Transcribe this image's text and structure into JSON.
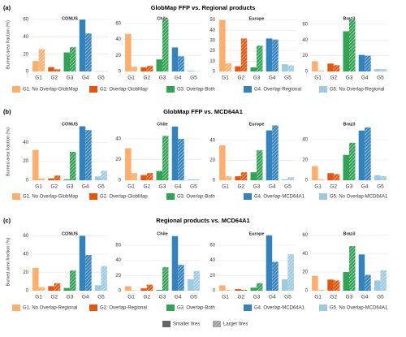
{
  "rows": [
    {
      "label": "(a)",
      "title": "GlobMap FFP vs. Regional products",
      "legend": [
        "G1. No Overlap-GlobMap",
        "G2. Overlap-GlobMap",
        "G3. Overlap-Both",
        "G4. Overlap-Regional",
        "G5. No Overlap-Regional"
      ]
    },
    {
      "label": "(b)",
      "title": "GlobMap FFP vs. MCD64A1",
      "legend": [
        "G1. No Overlap-GlobMap",
        "G2. Overlap-GlobMap",
        "G3. Overlap-Both",
        "G4. Overlap-MCD64A1",
        "G5. No Overlap-MCD64A1"
      ]
    },
    {
      "label": "(c)",
      "title": "Regional products vs. MCD64A1",
      "legend": [
        "G1. No Overlap-Regional",
        "G2. Overlap-Regional",
        "G3. Overlap-Both",
        "G4. Overlap-MCD64A1",
        "G5. No Overlap-MCD64A1"
      ]
    }
  ],
  "chart_data": [
    {
      "type": "bar",
      "title": "CONUS",
      "y_label": "Burned area fraction (%)",
      "categories": [
        "G1",
        "G2",
        "G3",
        "G4",
        "G5"
      ],
      "colors": [
        "#fdae6b",
        "#e6550d",
        "#31a354",
        "#3182bd",
        "#9ecae1"
      ],
      "series": [
        {
          "name": "Smaller fires",
          "values": [
            12,
            5,
            22,
            60,
            0.3
          ]
        },
        {
          "name": "Larger fires",
          "values": [
            26,
            2.5,
            28,
            44,
            0.3
          ]
        }
      ],
      "ylim": [
        0,
        62
      ],
      "yticks": [
        0,
        20,
        40,
        60
      ],
      "grid": true
    },
    {
      "type": "bar",
      "title": "Chile",
      "categories": [
        "G1",
        "G2",
        "G3",
        "G4",
        "G5"
      ],
      "colors": [
        "#fdae6b",
        "#e6550d",
        "#31a354",
        "#3182bd",
        "#9ecae1"
      ],
      "series": [
        {
          "name": "Smaller fires",
          "values": [
            47,
            5,
            15,
            30,
            1
          ]
        },
        {
          "name": "Larger fires",
          "values": [
            6,
            7,
            65,
            19,
            0.5
          ]
        }
      ],
      "ylim": [
        0,
        67
      ],
      "yticks": [
        0,
        20,
        40,
        60
      ],
      "grid": true
    },
    {
      "type": "bar",
      "title": "Europe",
      "categories": [
        "G1",
        "G2",
        "G3",
        "G4",
        "G5"
      ],
      "colors": [
        "#fdae6b",
        "#e6550d",
        "#31a354",
        "#3182bd",
        "#9ecae1"
      ],
      "series": [
        {
          "name": "Smaller fires",
          "values": [
            50,
            5,
            4,
            32,
            7
          ]
        },
        {
          "name": "Larger fires",
          "values": [
            8,
            32,
            25,
            31,
            6
          ]
        }
      ],
      "ylim": [
        0,
        52
      ],
      "yticks": [
        0,
        10,
        20,
        30,
        40,
        50
      ],
      "grid": true
    },
    {
      "type": "bar",
      "title": "Brazil",
      "categories": [
        "G1",
        "G2",
        "G3",
        "G4",
        "G5"
      ],
      "colors": [
        "#fdae6b",
        "#e6550d",
        "#31a354",
        "#3182bd",
        "#9ecae1"
      ],
      "series": [
        {
          "name": "Smaller fires",
          "values": [
            13,
            10,
            51,
            21,
            3
          ]
        },
        {
          "name": "Larger fires",
          "values": [
            1,
            8,
            66,
            20,
            3
          ]
        }
      ],
      "ylim": [
        0,
        68
      ],
      "yticks": [
        0,
        20,
        40,
        60
      ],
      "grid": true
    },
    {
      "type": "bar",
      "title": "CONUS",
      "y_label": "Burned area fraction (%)",
      "categories": [
        "G1",
        "G2",
        "G3",
        "G4",
        "G5"
      ],
      "colors": [
        "#fdae6b",
        "#e6550d",
        "#31a354",
        "#3182bd",
        "#9ecae1"
      ],
      "series": [
        {
          "name": "Smaller fires",
          "values": [
            32,
            2,
            1,
            57,
            4
          ]
        },
        {
          "name": "Larger fires",
          "values": [
            2,
            5,
            30,
            53,
            10
          ]
        }
      ],
      "ylim": [
        0,
        60
      ],
      "yticks": [
        0,
        20,
        40
      ],
      "grid": true
    },
    {
      "type": "bar",
      "title": "Chile",
      "categories": [
        "G1",
        "G2",
        "G3",
        "G4",
        "G5"
      ],
      "colors": [
        "#fdae6b",
        "#e6550d",
        "#31a354",
        "#3182bd",
        "#9ecae1"
      ],
      "series": [
        {
          "name": "Smaller fires",
          "values": [
            31,
            5,
            9,
            52,
            1
          ]
        },
        {
          "name": "Larger fires",
          "values": [
            7,
            7,
            43,
            40,
            1
          ]
        }
      ],
      "ylim": [
        0,
        55
      ],
      "yticks": [
        0,
        20,
        40
      ],
      "grid": true
    },
    {
      "type": "bar",
      "title": "Europe",
      "categories": [
        "G1",
        "G2",
        "G3",
        "G4",
        "G5"
      ],
      "colors": [
        "#fdae6b",
        "#e6550d",
        "#31a354",
        "#3182bd",
        "#9ecae1"
      ],
      "series": [
        {
          "name": "Smaller fires",
          "values": [
            35,
            4,
            8,
            50,
            1
          ]
        },
        {
          "name": "Larger fires",
          "values": [
            4,
            8,
            30,
            55,
            3
          ]
        }
      ],
      "ylim": [
        0,
        57
      ],
      "yticks": [
        0,
        20,
        40
      ],
      "grid": true
    },
    {
      "type": "bar",
      "title": "Brazil",
      "categories": [
        "G1",
        "G2",
        "G3",
        "G4",
        "G5"
      ],
      "colors": [
        "#fdae6b",
        "#e6550d",
        "#31a354",
        "#3182bd",
        "#9ecae1"
      ],
      "series": [
        {
          "name": "Smaller fires",
          "values": [
            14,
            7,
            25,
            49,
            5
          ]
        },
        {
          "name": "Larger fires",
          "values": [
            1,
            6,
            37,
            52,
            4
          ]
        }
      ],
      "ylim": [
        0,
        56
      ],
      "yticks": [
        0,
        20,
        40
      ],
      "grid": true
    },
    {
      "type": "bar",
      "title": "CONUS",
      "y_label": "Burned area fraction (%)",
      "categories": [
        "G1",
        "G2",
        "G3",
        "G4",
        "G5"
      ],
      "colors": [
        "#fdae6b",
        "#e6550d",
        "#31a354",
        "#3182bd",
        "#9ecae1"
      ],
      "series": [
        {
          "name": "Smaller fires",
          "values": [
            25,
            5,
            3,
            60,
            6
          ]
        },
        {
          "name": "Larger fires",
          "values": [
            4,
            8,
            22,
            39,
            27
          ]
        }
      ],
      "ylim": [
        0,
        63
      ],
      "yticks": [
        0,
        20,
        40,
        60
      ],
      "grid": true
    },
    {
      "type": "bar",
      "title": "Chile",
      "categories": [
        "G1",
        "G2",
        "G3",
        "G4",
        "G5"
      ],
      "colors": [
        "#fdae6b",
        "#e6550d",
        "#31a354",
        "#3182bd",
        "#9ecae1"
      ],
      "series": [
        {
          "name": "Smaller fires",
          "values": [
            6,
            3,
            1,
            72,
            15
          ]
        },
        {
          "name": "Larger fires",
          "values": [
            0.5,
            8,
            31,
            34,
            26
          ]
        }
      ],
      "ylim": [
        0,
        76
      ],
      "yticks": [
        0,
        20,
        40,
        60
      ],
      "grid": true
    },
    {
      "type": "bar",
      "title": "Europe",
      "categories": [
        "G1",
        "G2",
        "G3",
        "G4",
        "G5"
      ],
      "colors": [
        "#fdae6b",
        "#e6550d",
        "#31a354",
        "#3182bd",
        "#9ecae1"
      ],
      "series": [
        {
          "name": "Smaller fires",
          "values": [
            7,
            2,
            4,
            73,
            15
          ]
        },
        {
          "name": "Larger fires",
          "values": [
            1,
            1,
            10,
            38,
            48
          ]
        }
      ],
      "ylim": [
        0,
        76
      ],
      "yticks": [
        0,
        20,
        40,
        60
      ],
      "grid": true
    },
    {
      "type": "bar",
      "title": "Brazil",
      "categories": [
        "G1",
        "G2",
        "G3",
        "G4",
        "G5"
      ],
      "colors": [
        "#fdae6b",
        "#e6550d",
        "#31a354",
        "#3182bd",
        "#9ecae1"
      ],
      "series": [
        {
          "name": "Smaller fires",
          "values": [
            16,
            12,
            20,
            39,
            11
          ]
        },
        {
          "name": "Larger fires",
          "values": [
            1,
            11,
            48,
            17,
            22
          ]
        }
      ],
      "ylim": [
        0,
        62
      ],
      "yticks": [
        0,
        20,
        40,
        60
      ],
      "grid": true
    }
  ]
}
